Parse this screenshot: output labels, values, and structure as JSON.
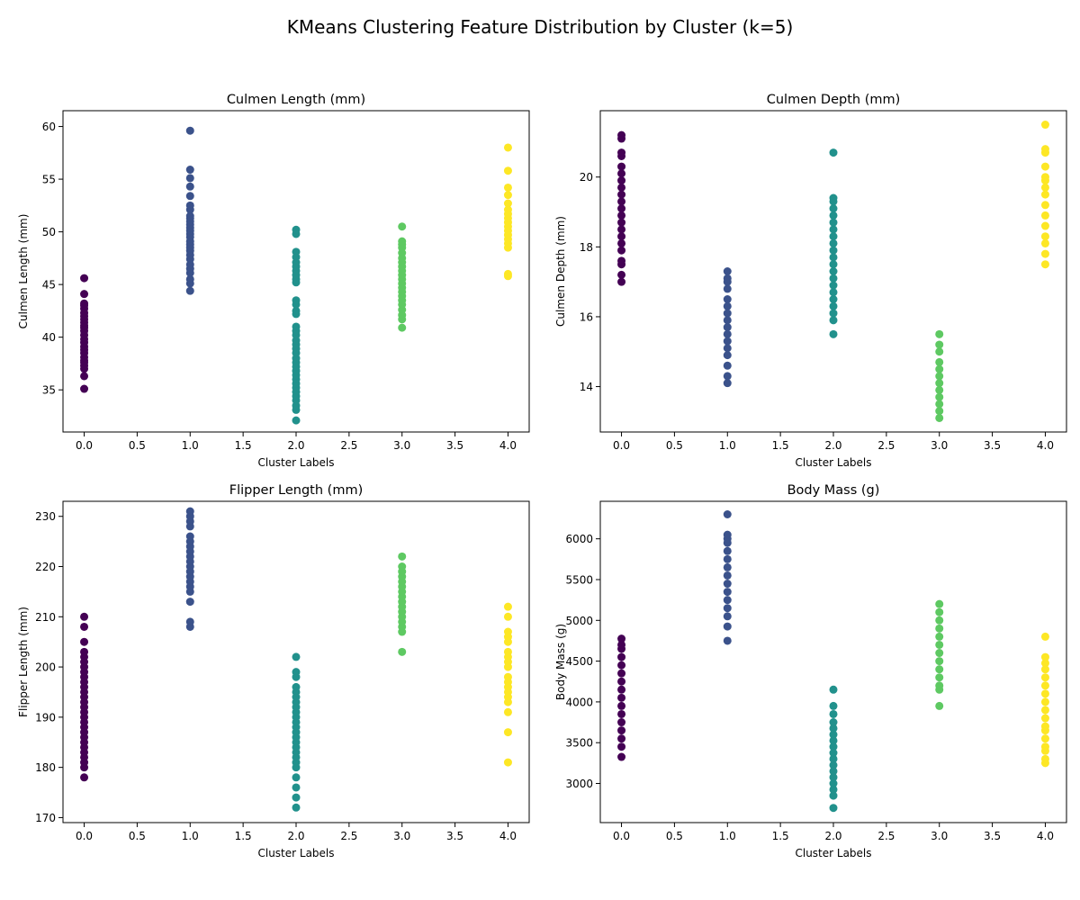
{
  "figure_title": "KMeans Clustering Feature Distribution by Cluster (k=5)",
  "cluster_colors": [
    "#440154",
    "#3b528b",
    "#21918c",
    "#5ec962",
    "#fde725"
  ],
  "chart_data": [
    {
      "type": "scatter",
      "title": "Culmen Length (mm)",
      "xlabel": "Cluster Labels",
      "ylabel": "Culmen Length (mm)",
      "xlim": [
        -0.2,
        4.2
      ],
      "ylim": [
        31,
        61.5
      ],
      "xticks": [
        0.0,
        0.5,
        1.0,
        1.5,
        2.0,
        2.5,
        3.0,
        3.5,
        4.0
      ],
      "yticks": [
        35,
        40,
        45,
        50,
        55,
        60
      ],
      "grid": false,
      "series": [
        {
          "cluster": 0,
          "x": 0,
          "y": [
            35.1,
            36.3,
            37.0,
            37.3,
            37.6,
            37.8,
            38.1,
            38.5,
            38.8,
            39.1,
            39.5,
            39.8,
            40.2,
            40.6,
            40.9,
            41.1,
            41.4,
            41.7,
            42.0,
            42.3,
            42.7,
            43.0,
            43.2,
            44.1,
            45.6
          ]
        },
        {
          "cluster": 1,
          "x": 1,
          "y": [
            44.4,
            45.1,
            45.5,
            46.1,
            46.5,
            46.9,
            47.4,
            47.8,
            48.2,
            48.5,
            48.8,
            49.1,
            49.5,
            49.8,
            50.1,
            50.4,
            50.7,
            51.0,
            51.3,
            51.5,
            52.1,
            52.5,
            53.4,
            54.3,
            55.1,
            55.9,
            59.6
          ]
        },
        {
          "cluster": 2,
          "x": 2,
          "y": [
            32.1,
            33.1,
            33.5,
            34.0,
            34.4,
            34.8,
            35.2,
            35.6,
            36.0,
            36.4,
            36.8,
            37.2,
            37.6,
            38.0,
            38.5,
            38.9,
            39.3,
            39.7,
            40.2,
            40.6,
            41.0,
            42.2,
            42.5,
            43.1,
            43.5,
            45.2,
            45.5,
            45.9,
            46.3,
            46.7,
            47.1,
            47.6,
            48.1,
            49.8,
            50.2
          ]
        },
        {
          "cluster": 3,
          "x": 3,
          "y": [
            40.9,
            41.7,
            42.1,
            42.6,
            43.1,
            43.5,
            43.9,
            44.3,
            44.7,
            45.1,
            45.5,
            45.9,
            46.3,
            46.7,
            47.1,
            47.5,
            48.0,
            48.5,
            48.8,
            49.1,
            50.5
          ]
        },
        {
          "cluster": 4,
          "x": 4,
          "y": [
            45.8,
            46.0,
            48.5,
            48.9,
            49.3,
            49.7,
            50.1,
            50.5,
            50.9,
            51.3,
            51.7,
            52.1,
            52.7,
            53.5,
            54.2,
            55.8,
            58.0
          ]
        }
      ]
    },
    {
      "type": "scatter",
      "title": "Culmen Depth (mm)",
      "xlabel": "Cluster Labels",
      "ylabel": "Culmen Depth (mm)",
      "xlim": [
        -0.2,
        4.2
      ],
      "ylim": [
        12.7,
        21.9
      ],
      "xticks": [
        0.0,
        0.5,
        1.0,
        1.5,
        2.0,
        2.5,
        3.0,
        3.5,
        4.0
      ],
      "yticks": [
        14,
        16,
        18,
        20
      ],
      "grid": false,
      "series": [
        {
          "cluster": 0,
          "x": 0,
          "y": [
            17.0,
            17.2,
            17.5,
            17.6,
            17.9,
            18.1,
            18.3,
            18.5,
            18.7,
            18.9,
            19.1,
            19.3,
            19.5,
            19.7,
            19.9,
            20.1,
            20.3,
            20.6,
            20.7,
            21.1,
            21.2
          ]
        },
        {
          "cluster": 1,
          "x": 1,
          "y": [
            14.1,
            14.3,
            14.6,
            14.9,
            15.1,
            15.3,
            15.5,
            15.7,
            15.9,
            16.1,
            16.3,
            16.5,
            16.8,
            17.0,
            17.1,
            17.3
          ]
        },
        {
          "cluster": 2,
          "x": 2,
          "y": [
            15.5,
            15.9,
            16.1,
            16.3,
            16.5,
            16.7,
            16.9,
            17.1,
            17.3,
            17.5,
            17.7,
            17.9,
            18.1,
            18.3,
            18.5,
            18.7,
            18.9,
            19.1,
            19.3,
            19.4,
            20.7
          ]
        },
        {
          "cluster": 3,
          "x": 3,
          "y": [
            13.1,
            13.3,
            13.5,
            13.7,
            13.9,
            14.1,
            14.3,
            14.5,
            14.7,
            15.0,
            15.2,
            15.5
          ]
        },
        {
          "cluster": 4,
          "x": 4,
          "y": [
            17.5,
            17.8,
            18.1,
            18.3,
            18.6,
            18.9,
            19.2,
            19.5,
            19.7,
            19.9,
            20.0,
            20.3,
            20.7,
            20.8,
            21.5
          ]
        }
      ]
    },
    {
      "type": "scatter",
      "title": "Flipper Length (mm)",
      "xlabel": "Cluster Labels",
      "ylabel": "Flipper Length (mm)",
      "xlim": [
        -0.2,
        4.2
      ],
      "ylim": [
        169,
        233
      ],
      "xticks": [
        0.0,
        0.5,
        1.0,
        1.5,
        2.0,
        2.5,
        3.0,
        3.5,
        4.0
      ],
      "yticks": [
        170,
        180,
        190,
        200,
        210,
        220,
        230
      ],
      "grid": false,
      "series": [
        {
          "cluster": 0,
          "x": 0,
          "y": [
            178,
            180,
            181,
            182,
            183,
            184,
            185,
            186,
            187,
            188,
            189,
            190,
            191,
            192,
            193,
            194,
            195,
            196,
            197,
            198,
            199,
            200,
            201,
            202,
            203,
            205,
            208,
            210
          ]
        },
        {
          "cluster": 1,
          "x": 1,
          "y": [
            208,
            209,
            213,
            215,
            216,
            217,
            218,
            219,
            220,
            221,
            222,
            223,
            224,
            225,
            226,
            228,
            229,
            230,
            231
          ]
        },
        {
          "cluster": 2,
          "x": 2,
          "y": [
            172,
            174,
            176,
            178,
            180,
            181,
            182,
            183,
            184,
            185,
            186,
            187,
            188,
            189,
            190,
            191,
            192,
            193,
            194,
            195,
            196,
            198,
            199,
            202
          ]
        },
        {
          "cluster": 3,
          "x": 3,
          "y": [
            203,
            207,
            208,
            209,
            210,
            211,
            212,
            213,
            214,
            215,
            216,
            217,
            218,
            219,
            220,
            222
          ]
        },
        {
          "cluster": 4,
          "x": 4,
          "y": [
            181,
            187,
            191,
            193,
            194,
            195,
            196,
            197,
            198,
            200,
            201,
            202,
            203,
            205,
            206,
            207,
            210,
            212
          ]
        }
      ]
    },
    {
      "type": "scatter",
      "title": "Body Mass (g)",
      "xlabel": "Cluster Labels",
      "ylabel": "Body Mass (g)",
      "xlim": [
        -0.2,
        4.2
      ],
      "ylim": [
        2520,
        6460
      ],
      "xticks": [
        0.0,
        0.5,
        1.0,
        1.5,
        2.0,
        2.5,
        3.0,
        3.5,
        4.0
      ],
      "yticks": [
        3000,
        3500,
        4000,
        4500,
        5000,
        5500,
        6000
      ],
      "grid": false,
      "series": [
        {
          "cluster": 0,
          "x": 0,
          "y": [
            3325,
            3450,
            3550,
            3650,
            3750,
            3850,
            3950,
            4050,
            4150,
            4250,
            4350,
            4450,
            4550,
            4650,
            4700,
            4775
          ]
        },
        {
          "cluster": 1,
          "x": 1,
          "y": [
            4750,
            4925,
            5050,
            5150,
            5250,
            5350,
            5450,
            5550,
            5650,
            5750,
            5850,
            5950,
            6000,
            6050,
            6300
          ]
        },
        {
          "cluster": 2,
          "x": 2,
          "y": [
            2700,
            2850,
            2925,
            3000,
            3075,
            3150,
            3225,
            3300,
            3375,
            3450,
            3525,
            3600,
            3675,
            3750,
            3850,
            3950,
            4150
          ]
        },
        {
          "cluster": 3,
          "x": 3,
          "y": [
            3950,
            4150,
            4200,
            4300,
            4400,
            4500,
            4600,
            4700,
            4800,
            4900,
            5000,
            5100,
            5200
          ]
        },
        {
          "cluster": 4,
          "x": 4,
          "y": [
            3250,
            3300,
            3400,
            3450,
            3550,
            3650,
            3700,
            3800,
            3900,
            4000,
            4100,
            4200,
            4300,
            4400,
            4475,
            4550,
            4800
          ]
        }
      ]
    }
  ]
}
